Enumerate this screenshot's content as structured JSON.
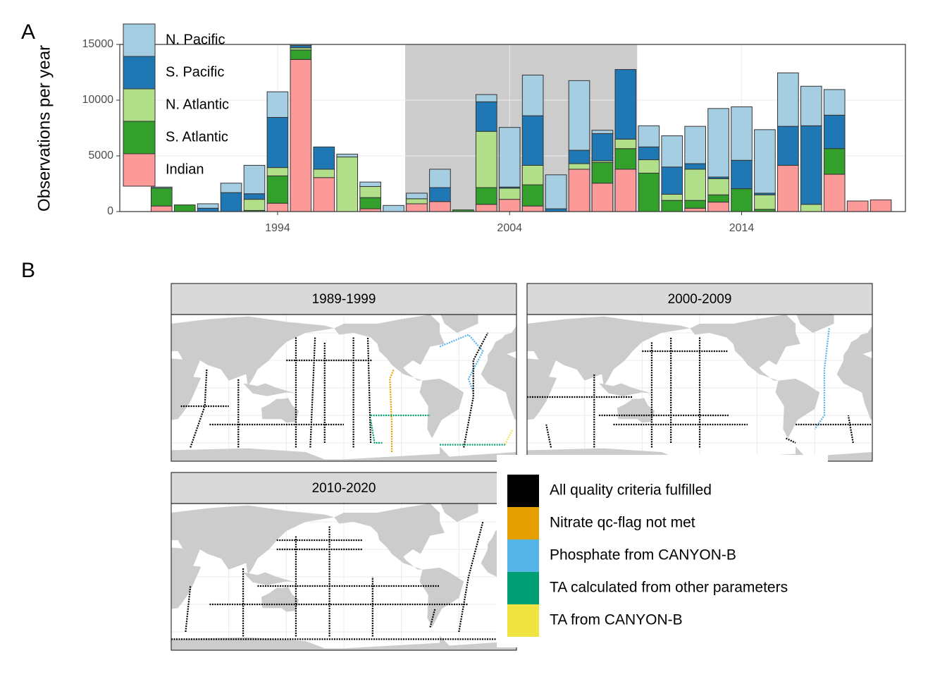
{
  "chart_data": [
    {
      "type": "bar",
      "label": "A",
      "ylabel": "Observations per year",
      "x": [
        1989,
        1990,
        1991,
        1992,
        1993,
        1994,
        1995,
        1996,
        1997,
        1998,
        1999,
        2000,
        2001,
        2002,
        2003,
        2004,
        2005,
        2006,
        2007,
        2008,
        2009,
        2010,
        2011,
        2012,
        2013,
        2014,
        2015,
        2016,
        2017,
        2018,
        2019,
        2020
      ],
      "xlim": [
        1987.2,
        2021.06
      ],
      "xticks": [
        1994,
        2004,
        2014
      ],
      "ylim": [
        0,
        15000
      ],
      "yticks": [
        0,
        5000,
        10000,
        15000
      ],
      "grid": true,
      "stacked": true,
      "legend_position": "top-left",
      "shaded_range": [
        1999.5,
        2009.5
      ],
      "series": [
        {
          "name": "Indian",
          "color": "#fb9a99",
          "values": [
            500,
            0,
            0,
            0,
            0,
            750,
            13650,
            3050,
            0,
            250,
            0,
            700,
            900,
            0,
            650,
            1100,
            500,
            0,
            3800,
            2550,
            3800,
            0,
            0,
            300,
            850,
            0,
            0,
            4150,
            0,
            3350,
            950,
            1050
          ]
        },
        {
          "name": "S. Atlantic",
          "color": "#33a02c",
          "values": [
            1600,
            600,
            0,
            0,
            100,
            2450,
            850,
            0,
            0,
            1000,
            0,
            0,
            0,
            150,
            1500,
            0,
            1900,
            0,
            0,
            1850,
            1850,
            3450,
            1000,
            700,
            650,
            2050,
            200,
            0,
            0,
            2300,
            0,
            0
          ]
        },
        {
          "name": "N. Atlantic",
          "color": "#b2df8a",
          "values": [
            0,
            0,
            0,
            0,
            1000,
            750,
            200,
            750,
            4900,
            1000,
            0,
            450,
            0,
            0,
            5050,
            1000,
            1750,
            0,
            500,
            150,
            850,
            1200,
            550,
            2800,
            1450,
            0,
            1300,
            0,
            650,
            0,
            0,
            0
          ]
        },
        {
          "name": "S. Pacific",
          "color": "#1f78b4",
          "values": [
            0,
            0,
            300,
            1700,
            500,
            4500,
            200,
            2000,
            0,
            0,
            0,
            0,
            1250,
            0,
            2650,
            100,
            4450,
            250,
            1200,
            2450,
            6250,
            1150,
            2450,
            500,
            150,
            2550,
            150,
            3500,
            7050,
            3000,
            0,
            0
          ]
        },
        {
          "name": "N. Pacific",
          "color": "#a6cee3",
          "values": [
            100,
            0,
            400,
            850,
            2550,
            2300,
            200,
            0,
            250,
            400,
            550,
            500,
            1650,
            0,
            650,
            5350,
            3650,
            3050,
            6250,
            300,
            0,
            1900,
            2800,
            3350,
            6150,
            4800,
            5700,
            4800,
            3550,
            2300,
            0,
            0
          ]
        }
      ]
    },
    {
      "type": "map",
      "label": "B",
      "panels": [
        "1989-1999",
        "2000-2009",
        "2010-2020"
      ],
      "categories": [
        "All quality criteria fulfilled",
        "Nitrate qc-flag not met",
        "Phosphate from CANYON-B",
        "TA calculated from other parameters",
        "TA from CANYON-B"
      ],
      "colors": [
        "#000000",
        "#e69f00",
        "#56b4e9",
        "#009e73",
        "#f0e442"
      ]
    }
  ]
}
